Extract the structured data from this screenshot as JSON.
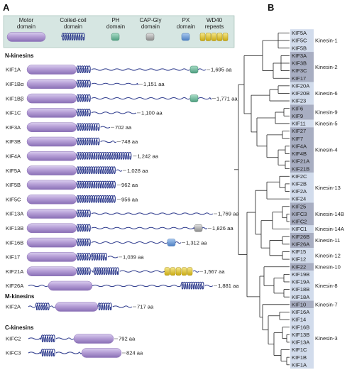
{
  "panels": {
    "a": "A",
    "b": "B"
  },
  "legend": {
    "items": [
      {
        "lines": [
          "Motor",
          "domain"
        ],
        "shape": "motor"
      },
      {
        "lines": [
          "Coiled-coil",
          "domain"
        ],
        "shape": "coil"
      },
      {
        "lines": [
          "PH",
          "domain"
        ],
        "shape": "ph"
      },
      {
        "lines": [
          "CAP-Gly",
          "domain"
        ],
        "shape": "capgly"
      },
      {
        "lines": [
          "PX",
          "domain"
        ],
        "shape": "px"
      },
      {
        "lines": [
          "WD40",
          "repeats"
        ],
        "shape": "wd40"
      }
    ]
  },
  "colors": {
    "motor": "#b59ed6",
    "motor_dark": "#8a70b6",
    "coil": "#2d3a8c",
    "ph": "#6db99a",
    "capgly": "#a8a8a8",
    "px": "#6a9ad6",
    "wd40": "#e8cf2a",
    "legend_bg": "#d6e6e2",
    "clade_light": "#d2dcec",
    "clade_dark": "#a8aec2"
  },
  "sections": [
    {
      "title": "N-kinesins",
      "proteins": [
        {
          "name": "KIF1A",
          "length": "1,695 aa"
        },
        {
          "name": "KIF1Bα",
          "length": "1,151 aa"
        },
        {
          "name": "KIF1Bβ",
          "length": "1,771 aa"
        },
        {
          "name": "KIF1C",
          "length": "1,100 aa"
        },
        {
          "name": "KIF3A",
          "length": "702 aa"
        },
        {
          "name": "KIF3B",
          "length": "748 aa"
        },
        {
          "name": "KIF4A",
          "length": "1,242 aa"
        },
        {
          "name": "KIF5A",
          "length": "1,028 aa"
        },
        {
          "name": "KIF5B",
          "length": "962 aa"
        },
        {
          "name": "KIF5C",
          "length": "956 aa"
        },
        {
          "name": "KIF13A",
          "length": "1,769 aa"
        },
        {
          "name": "KIF13B",
          "length": "1,826 aa"
        },
        {
          "name": "KIF16B",
          "length": "1,312 aa"
        },
        {
          "name": "KIF17",
          "length": "1,039 aa"
        },
        {
          "name": "KIF21A",
          "length": "1,567 aa"
        },
        {
          "name": "KIF26A",
          "length": "1,881 aa"
        }
      ]
    },
    {
      "title": "M-kinesins",
      "proteins": [
        {
          "name": "KIF2A",
          "length": "717 aa"
        }
      ]
    },
    {
      "title": "C-kinesins",
      "proteins": [
        {
          "name": "KIFC2",
          "length": "792 aa"
        },
        {
          "name": "KIFC3",
          "length": "824 aa"
        }
      ]
    }
  ],
  "tree_leaves": [
    "KIF5A",
    "KIF5C",
    "KIF5B",
    "KIF3A",
    "KIF3B",
    "KIF3C",
    "KIF17",
    "KIF20A",
    "KIF20B",
    "KIF23",
    "KIF6",
    "KIF9",
    "KIF11",
    "KIF27",
    "KIF7",
    "KIF4A",
    "KIF4B",
    "KIF21A",
    "KIF21B",
    "KIF2C",
    "KIF2B",
    "KIF2A",
    "KIF24",
    "KIF25",
    "KIFC3",
    "KIFC2",
    "KIFC1",
    "KIF26B",
    "KIF26A",
    "KIF15",
    "KIF12",
    "KIF22",
    "KIF19B",
    "KIF19A",
    "KIF18B",
    "KIF18A",
    "KIF10",
    "KIF16A",
    "KIF14",
    "KIF16B",
    "KIF13B",
    "KIF13A",
    "KIF1C",
    "KIF1B",
    "KIF1A"
  ],
  "families": [
    {
      "name": "Kinesin-1"
    },
    {
      "name": "Kinesin-2"
    },
    {
      "name": "Kinesin-6"
    },
    {
      "name": "Kinesin-9"
    },
    {
      "name": "Kinesin-5"
    },
    {
      "name": "Kinesin-4"
    },
    {
      "name": "Kinesin-13"
    },
    {
      "name": "Kinesin-14B"
    },
    {
      "name": "Kinesin-14A"
    },
    {
      "name": "Kinesin-11"
    },
    {
      "name": "Kinesin-12"
    },
    {
      "name": "Kinesin-10"
    },
    {
      "name": "Kinesin-8"
    },
    {
      "name": "Kinesin-7"
    },
    {
      "name": "Kinesin-3"
    }
  ]
}
